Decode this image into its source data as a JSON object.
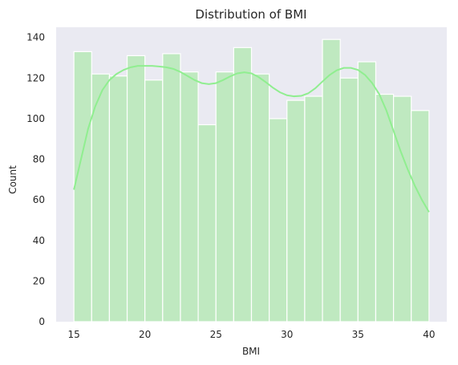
{
  "chart_data": {
    "type": "bar",
    "title": "Distribution of BMI",
    "xlabel": "BMI",
    "ylabel": "Count",
    "xlim": [
      13.75,
      41.25
    ],
    "ylim": [
      0,
      145
    ],
    "xticks": [
      15,
      20,
      25,
      30,
      35,
      40
    ],
    "yticks": [
      0,
      20,
      40,
      60,
      80,
      100,
      120,
      140
    ],
    "grid": false,
    "bins": {
      "edges": [
        15,
        16.25,
        17.5,
        18.75,
        20,
        21.25,
        22.5,
        23.75,
        25,
        26.25,
        27.5,
        28.75,
        30,
        31.25,
        32.5,
        33.75,
        35,
        36.25,
        37.5,
        38.75,
        40
      ],
      "counts": [
        133,
        122,
        121,
        131,
        119,
        132,
        123,
        97,
        123,
        135,
        122,
        100,
        109,
        111,
        139,
        120,
        128,
        112,
        111,
        104
      ]
    },
    "kde": {
      "x": [
        15,
        15.5,
        16,
        16.5,
        17,
        17.5,
        18,
        18.5,
        19,
        19.5,
        20,
        20.5,
        21,
        21.5,
        22,
        22.5,
        23,
        23.5,
        24,
        24.5,
        25,
        25.5,
        26,
        26.5,
        27,
        27.5,
        28,
        28.5,
        29,
        29.5,
        30,
        30.5,
        31,
        31.5,
        32,
        32.5,
        33,
        33.5,
        34,
        34.5,
        35,
        35.5,
        36,
        36.5,
        37,
        37.5,
        38,
        38.5,
        39,
        39.5,
        40
      ],
      "y": [
        65,
        80,
        95,
        106,
        114,
        119,
        122,
        124,
        125.3,
        126,
        126,
        126,
        125.7,
        125.3,
        124.5,
        123,
        121,
        119,
        117.5,
        117,
        117.5,
        119,
        120.8,
        122.3,
        122.8,
        122.3,
        120.5,
        118,
        115.3,
        113,
        111.5,
        111,
        111.2,
        112.5,
        115,
        118.3,
        121.5,
        123.8,
        125,
        125,
        124,
        121.5,
        117.5,
        112,
        104,
        94,
        84,
        75,
        67,
        60,
        54
      ]
    },
    "colors": {
      "background": "#eaeaf2",
      "bar_fill": "#bfe9c0",
      "bar_edge": "#ffffff",
      "kde_line": "#90ee90"
    }
  }
}
